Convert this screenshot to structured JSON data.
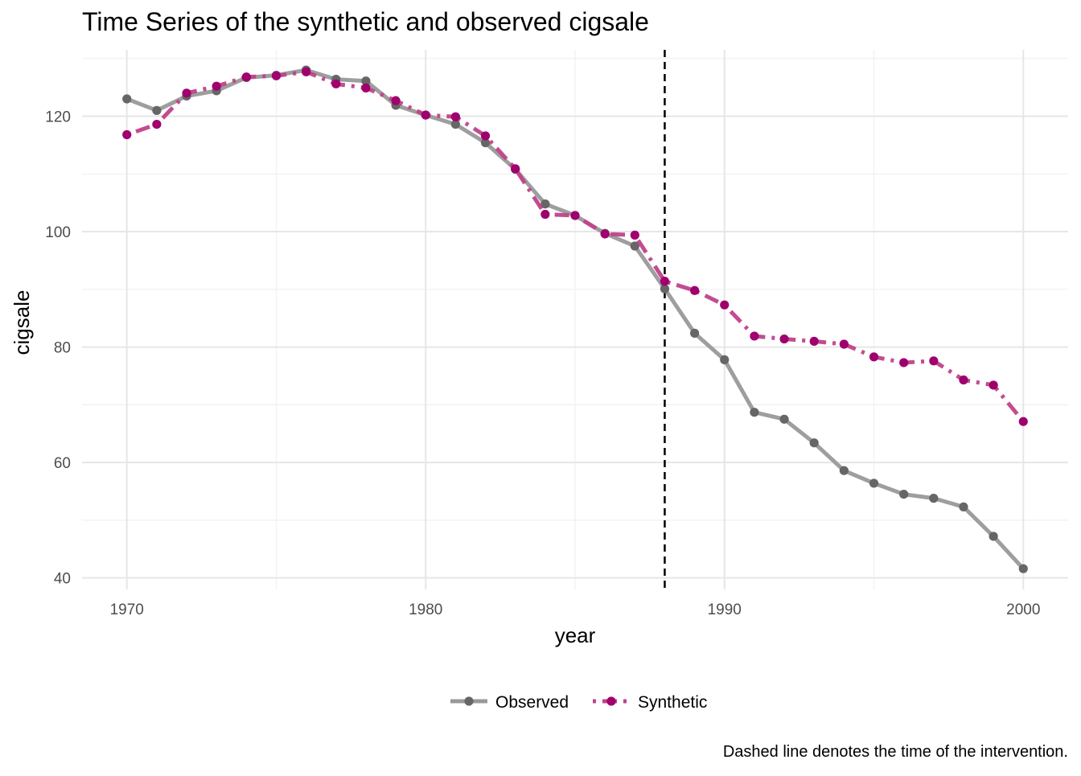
{
  "chart_data": {
    "type": "line",
    "title": "Time Series of the synthetic and observed cigsale",
    "xlabel": "year",
    "ylabel": "cigsale",
    "caption": "Dashed line denotes the time of the intervention.",
    "xlim": [
      1968.5,
      2001.5
    ],
    "ylim": [
      38,
      131.5
    ],
    "x_ticks": [
      1970,
      1980,
      1990,
      2000
    ],
    "y_ticks": [
      40,
      60,
      80,
      100,
      120
    ],
    "grid": true,
    "legend_position": "bottom",
    "intervention_year": 1988,
    "x": [
      1970,
      1971,
      1972,
      1973,
      1974,
      1975,
      1976,
      1977,
      1978,
      1979,
      1980,
      1981,
      1982,
      1983,
      1984,
      1985,
      1986,
      1987,
      1988,
      1989,
      1990,
      1991,
      1992,
      1993,
      1994,
      1995,
      1996,
      1997,
      1998,
      1999,
      2000
    ],
    "series": [
      {
        "name": "Observed",
        "color": "#666666",
        "line_color": "#999999",
        "line_style": "solid",
        "values": [
          123.0,
          121.0,
          123.5,
          124.4,
          126.7,
          127.1,
          128.0,
          126.4,
          126.1,
          121.9,
          120.2,
          118.6,
          115.4,
          110.8,
          104.8,
          102.8,
          99.7,
          97.5,
          90.1,
          82.4,
          77.8,
          68.7,
          67.5,
          63.4,
          58.6,
          56.4,
          54.5,
          53.8,
          52.3,
          47.2,
          41.6
        ]
      },
      {
        "name": "Synthetic",
        "color": "#a0006e",
        "line_color": "#c0428a",
        "line_style": "dotdash",
        "values": [
          116.8,
          118.6,
          124.0,
          125.2,
          126.8,
          127.0,
          127.7,
          125.6,
          124.9,
          122.7,
          120.2,
          119.9,
          116.6,
          110.9,
          103.0,
          102.8,
          99.6,
          99.4,
          91.4,
          89.8,
          87.3,
          81.9,
          81.4,
          81.0,
          80.5,
          78.3,
          77.3,
          77.6,
          74.3,
          73.4,
          67.1
        ]
      }
    ]
  }
}
